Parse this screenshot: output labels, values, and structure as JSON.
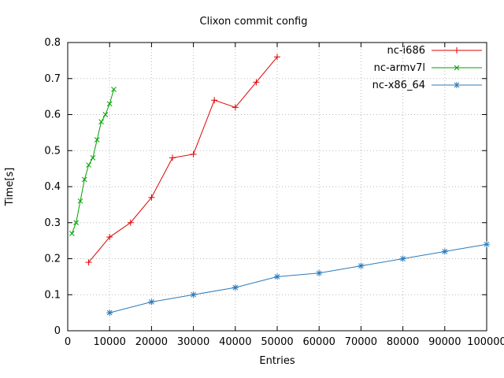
{
  "chart_data": {
    "type": "line",
    "title": "Clixon commit config",
    "xlabel": "Entries",
    "ylabel": "Time[s]",
    "xlim": [
      0,
      100000
    ],
    "ylim": [
      0,
      0.8
    ],
    "grid": true,
    "legend_position": "top-right-inside",
    "xticks": {
      "values": [
        0,
        10000,
        20000,
        30000,
        40000,
        50000,
        60000,
        70000,
        80000,
        90000,
        100000
      ],
      "labels": [
        "0",
        "10000",
        "20000",
        "30000",
        "40000",
        "50000",
        "60000",
        "70000",
        "80000",
        "90000",
        "100000"
      ]
    },
    "yticks": {
      "values": [
        0,
        0.1,
        0.2,
        0.3,
        0.4,
        0.5,
        0.6,
        0.7,
        0.8
      ],
      "labels": [
        "0",
        "0.1",
        "0.2",
        "0.3",
        "0.4",
        "0.5",
        "0.6",
        "0.7",
        "0.8"
      ]
    },
    "series": [
      {
        "name": "nc-i686",
        "color": "#e00000",
        "marker": "plus",
        "points": [
          [
            5000,
            0.19
          ],
          [
            10000,
            0.26
          ],
          [
            15000,
            0.3
          ],
          [
            20000,
            0.37
          ],
          [
            25000,
            0.48
          ],
          [
            30000,
            0.49
          ],
          [
            35000,
            0.64
          ],
          [
            40000,
            0.62
          ],
          [
            45000,
            0.69
          ],
          [
            50000,
            0.76
          ]
        ]
      },
      {
        "name": "nc-armv7l",
        "color": "#00a000",
        "marker": "cross",
        "points": [
          [
            1000,
            0.27
          ],
          [
            2000,
            0.3
          ],
          [
            3000,
            0.36
          ],
          [
            4000,
            0.42
          ],
          [
            5000,
            0.46
          ],
          [
            6000,
            0.48
          ],
          [
            7000,
            0.53
          ],
          [
            8000,
            0.58
          ],
          [
            9000,
            0.6
          ],
          [
            10000,
            0.63
          ],
          [
            11000,
            0.67
          ]
        ]
      },
      {
        "name": "nc-x86_64",
        "color": "#2b7bba",
        "marker": "asterisk",
        "points": [
          [
            10000,
            0.05
          ],
          [
            20000,
            0.08
          ],
          [
            30000,
            0.1
          ],
          [
            40000,
            0.12
          ],
          [
            50000,
            0.15
          ],
          [
            60000,
            0.16
          ],
          [
            70000,
            0.18
          ],
          [
            80000,
            0.2
          ],
          [
            90000,
            0.22
          ],
          [
            100000,
            0.24
          ]
        ]
      }
    ]
  }
}
